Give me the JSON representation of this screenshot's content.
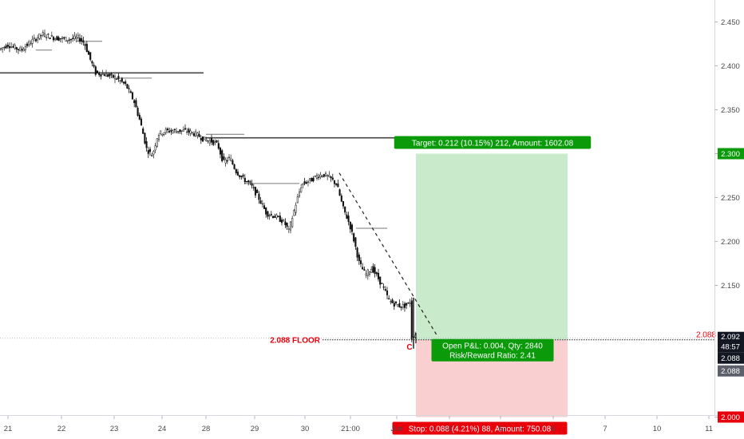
{
  "chart_data": {
    "type": "candlestick",
    "y_axis": {
      "range": [
        1.975,
        2.475
      ],
      "ticks": [
        {
          "value": 2.45,
          "label": "2.450"
        },
        {
          "value": 2.4,
          "label": "2.400"
        },
        {
          "value": 2.35,
          "label": "2.350"
        },
        {
          "value": 2.3,
          "label": "2.300",
          "highlight": "#0a9a0a"
        },
        {
          "value": 2.25,
          "label": "2.250"
        },
        {
          "value": 2.2,
          "label": "2.200"
        },
        {
          "value": 2.15,
          "label": "2.150"
        },
        {
          "value": 2.0,
          "label": "2.000",
          "highlight": "#e8000b"
        }
      ]
    },
    "x_axis": {
      "ticks": [
        {
          "label": "21",
          "slot": 10
        },
        {
          "label": "22",
          "slot": 77
        },
        {
          "label": "23",
          "slot": 143
        },
        {
          "label": "24",
          "slot": 203
        },
        {
          "label": "28",
          "slot": 258
        },
        {
          "label": "29",
          "slot": 319
        },
        {
          "label": "30",
          "slot": 382
        },
        {
          "label": "21:00",
          "slot": 439
        },
        {
          "label": "Jun",
          "slot": 497
        },
        {
          "label": "4",
          "slot": 563
        },
        {
          "label": "5",
          "slot": 627
        },
        {
          "label": "6",
          "slot": 693
        },
        {
          "label": "7",
          "slot": 758
        },
        {
          "label": "10",
          "slot": 823
        },
        {
          "label": "11",
          "slot": 888
        }
      ]
    },
    "price_path": [
      [
        0,
        2.418
      ],
      [
        12,
        2.424
      ],
      [
        28,
        2.418
      ],
      [
        42,
        2.428
      ],
      [
        55,
        2.436
      ],
      [
        70,
        2.432
      ],
      [
        88,
        2.43
      ],
      [
        100,
        2.432
      ],
      [
        108,
        2.426
      ],
      [
        115,
        2.408
      ],
      [
        122,
        2.392
      ],
      [
        135,
        2.39
      ],
      [
        148,
        2.386
      ],
      [
        160,
        2.378
      ],
      [
        170,
        2.36
      ],
      [
        178,
        2.336
      ],
      [
        186,
        2.305
      ],
      [
        193,
        2.298
      ],
      [
        200,
        2.322
      ],
      [
        210,
        2.326
      ],
      [
        222,
        2.326
      ],
      [
        235,
        2.326
      ],
      [
        248,
        2.322
      ],
      [
        258,
        2.316
      ],
      [
        268,
        2.314
      ],
      [
        275,
        2.31
      ],
      [
        282,
        2.29
      ],
      [
        290,
        2.295
      ],
      [
        298,
        2.28
      ],
      [
        306,
        2.272
      ],
      [
        316,
        2.265
      ],
      [
        326,
        2.25
      ],
      [
        336,
        2.232
      ],
      [
        348,
        2.228
      ],
      [
        358,
        2.222
      ],
      [
        364,
        2.212
      ],
      [
        372,
        2.24
      ],
      [
        380,
        2.265
      ],
      [
        392,
        2.27
      ],
      [
        400,
        2.275
      ],
      [
        408,
        2.276
      ],
      [
        416,
        2.272
      ],
      [
        424,
        2.265
      ],
      [
        432,
        2.238
      ],
      [
        440,
        2.22
      ],
      [
        446,
        2.2
      ],
      [
        452,
        2.176
      ],
      [
        460,
        2.162
      ],
      [
        468,
        2.17
      ],
      [
        476,
        2.158
      ],
      [
        482,
        2.148
      ],
      [
        490,
        2.132
      ],
      [
        498,
        2.128
      ],
      [
        506,
        2.126
      ],
      [
        513,
        2.128
      ],
      [
        516,
        2.132
      ],
      [
        518,
        2.09
      ],
      [
        521,
        2.094
      ]
    ],
    "support_lines": [
      {
        "price": 2.392,
        "x0": 0,
        "x1": 255,
        "weight": 1.6,
        "color": "#444444"
      },
      {
        "price": 2.318,
        "x0": 255,
        "x1": 494,
        "weight": 1.6,
        "color": "#444444"
      },
      {
        "price": 2.428,
        "x0": 96,
        "x1": 128,
        "weight": 1,
        "color": "#777777"
      },
      {
        "price": 2.418,
        "x0": 45,
        "x1": 65,
        "weight": 1,
        "color": "#777777"
      },
      {
        "price": 2.386,
        "x0": 148,
        "x1": 190,
        "weight": 1,
        "color": "#777777"
      },
      {
        "price": 2.322,
        "x0": 258,
        "x1": 306,
        "weight": 1,
        "color": "#777777"
      },
      {
        "price": 2.266,
        "x0": 306,
        "x1": 375,
        "weight": 1,
        "color": "#777777"
      },
      {
        "price": 2.215,
        "x0": 446,
        "x1": 485,
        "weight": 1,
        "color": "#777777"
      }
    ],
    "trendline": {
      "x0": 425,
      "p0": 2.278,
      "x1": 548,
      "p1": 2.092,
      "color": "#222222"
    },
    "floor": {
      "price": 2.088,
      "label": "2.088 FLOOR",
      "axis_label": "2.088",
      "color": "#e8000b"
    },
    "wave_label": {
      "text": "C",
      "color": "#e8000b"
    },
    "position": {
      "entry": 2.088,
      "target": 2.3,
      "stop": 2.0,
      "x0": 521,
      "x1": 711,
      "target_label": "Target: 0.212 (10.15%) 212, Amount: 1602.08",
      "stop_label": "Stop: 0.088 (4.21%) 88, Amount: 750.08",
      "open_pnl_label": "Open P&L: 0.004, Qty: 2840",
      "risk_reward_label": "Risk/Reward Ratio: 2.41",
      "profit_color": "#bfe7c3",
      "loss_color": "#f9c7c7",
      "label_green": "#0a9a0a",
      "label_red": "#e8000b"
    },
    "axis_labels": {
      "last_price": "2.092",
      "countdown": "48:57",
      "price_a": "2.088",
      "price_b": "2.088",
      "label_dark": "#131722",
      "label_gray": "#5d606b"
    }
  }
}
